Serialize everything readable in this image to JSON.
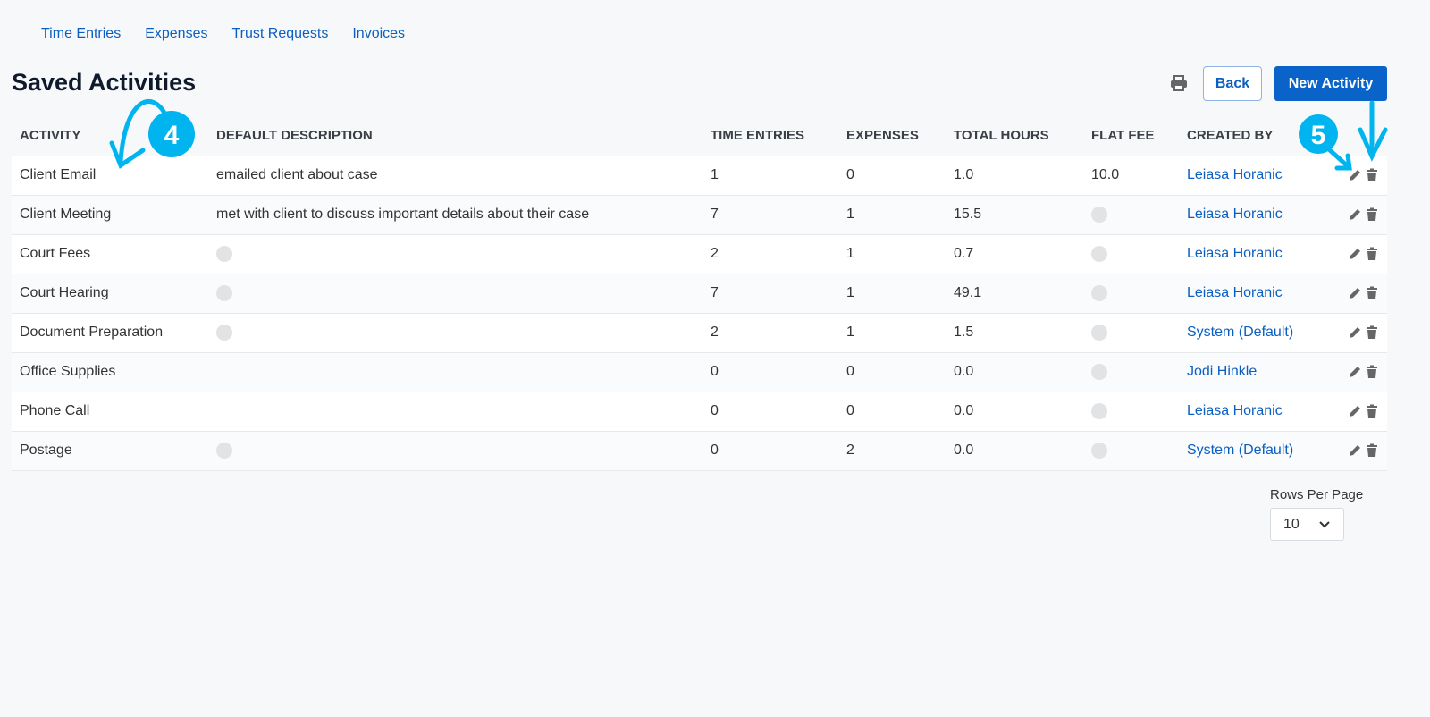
{
  "nav": {
    "items": [
      "Time Entries",
      "Expenses",
      "Trust Requests",
      "Invoices"
    ]
  },
  "page_title": "Saved Activities",
  "toolbar": {
    "print_icon": "print-icon",
    "back_label": "Back",
    "new_label": "New Activity"
  },
  "table": {
    "headers": [
      "ACTIVITY",
      "DEFAULT DESCRIPTION",
      "TIME ENTRIES",
      "EXPENSES",
      "TOTAL HOURS",
      "FLAT FEE",
      "CREATED BY"
    ],
    "rows": [
      {
        "activity": "Client Email",
        "description": "emailed client about case",
        "time_entries": "1",
        "expenses": "0",
        "total_hours": "1.0",
        "flat_fee": "10.0",
        "created_by": "Leiasa Horanic"
      },
      {
        "activity": "Client Meeting",
        "description": "met with client to discuss important details about their case",
        "time_entries": "7",
        "expenses": "1",
        "total_hours": "15.5",
        "flat_fee": null,
        "created_by": "Leiasa Horanic"
      },
      {
        "activity": "Court Fees",
        "description": null,
        "time_entries": "2",
        "expenses": "1",
        "total_hours": "0.7",
        "flat_fee": null,
        "created_by": "Leiasa Horanic"
      },
      {
        "activity": "Court Hearing",
        "description": null,
        "time_entries": "7",
        "expenses": "1",
        "total_hours": "49.1",
        "flat_fee": null,
        "created_by": "Leiasa Horanic"
      },
      {
        "activity": "Document Preparation",
        "description": null,
        "time_entries": "2",
        "expenses": "1",
        "total_hours": "1.5",
        "flat_fee": null,
        "created_by": "System (Default)"
      },
      {
        "activity": "Office Supplies",
        "description": "",
        "time_entries": "0",
        "expenses": "0",
        "total_hours": "0.0",
        "flat_fee": null,
        "created_by": "Jodi Hinkle"
      },
      {
        "activity": "Phone Call",
        "description": "",
        "time_entries": "0",
        "expenses": "0",
        "total_hours": "0.0",
        "flat_fee": null,
        "created_by": "Leiasa Horanic"
      },
      {
        "activity": "Postage",
        "description": null,
        "time_entries": "0",
        "expenses": "2",
        "total_hours": "0.0",
        "flat_fee": null,
        "created_by": "System (Default)"
      }
    ]
  },
  "pagination": {
    "rows_per_page_label": "Rows Per Page",
    "rows_per_page": "10"
  },
  "annotations": {
    "callout_4": "4",
    "callout_5": "5",
    "color": "#00b4ef"
  }
}
